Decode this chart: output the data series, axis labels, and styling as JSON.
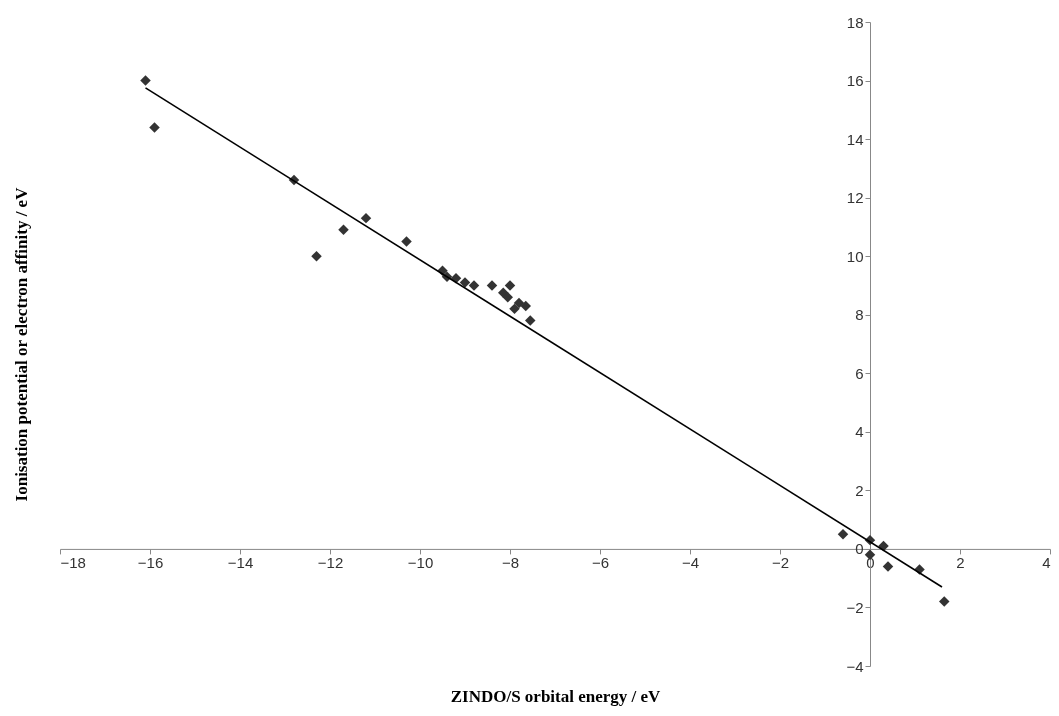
{
  "chart_data": {
    "type": "scatter",
    "xlabel": "ZINDO/S orbital energy / eV",
    "ylabel": "Ionisation potential or electron affinity / eV",
    "xlim": [
      -18,
      4
    ],
    "ylim": [
      -4,
      18
    ],
    "xticks": [
      -18,
      -16,
      -14,
      -12,
      -10,
      -8,
      -6,
      -4,
      -2,
      0,
      2,
      4
    ],
    "yticks": [
      -4,
      -2,
      0,
      2,
      4,
      6,
      8,
      10,
      12,
      14,
      16,
      18
    ],
    "grid": false,
    "series": [
      {
        "marker": "diamond",
        "color": "#333333",
        "x": [
          -16.1,
          -15.9,
          -12.8,
          -12.3,
          -11.7,
          -11.2,
          -10.3,
          -9.5,
          -9.4,
          -9.2,
          -9.0,
          -8.8,
          -8.4,
          -8.15,
          -8.0,
          -8.05,
          -7.9,
          -7.8,
          -7.65,
          -7.55,
          -0.6,
          0,
          0,
          0.3,
          0.4,
          1.1,
          1.65
        ],
        "values": [
          16.0,
          14.4,
          12.6,
          10.0,
          10.9,
          11.3,
          10.5,
          9.5,
          9.3,
          9.25,
          9.1,
          9.0,
          9.0,
          8.75,
          9.0,
          8.6,
          8.2,
          8.4,
          8.3,
          7.8,
          0.5,
          0.3,
          -0.2,
          0.1,
          -0.6,
          -0.7,
          -1.8
        ]
      },
      {
        "type": "line",
        "color": "#000000",
        "line_style": "solid",
        "x": [
          -16.1,
          1.6
        ],
        "values": [
          15.75,
          -1.3
        ]
      }
    ]
  }
}
